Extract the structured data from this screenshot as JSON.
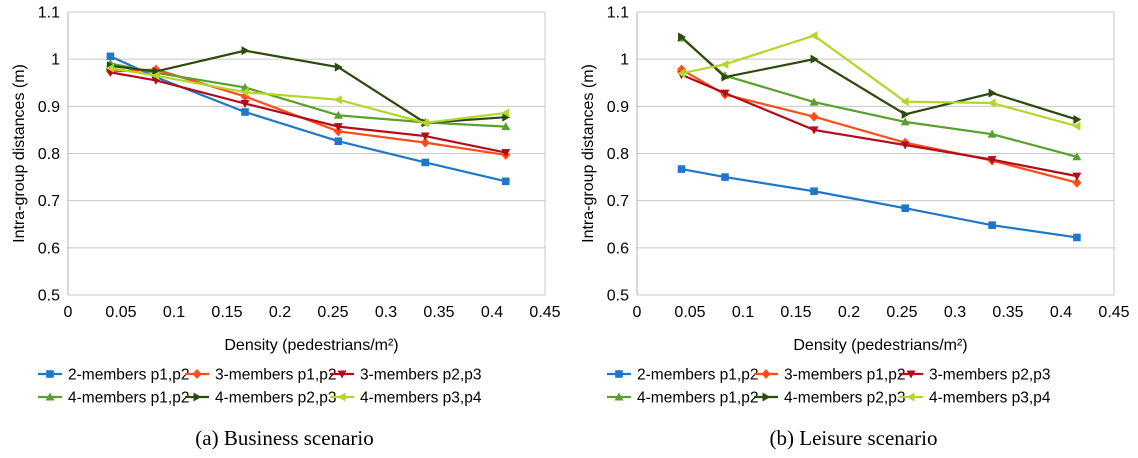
{
  "chart_data": [
    {
      "type": "line",
      "caption": "(a) Business scenario",
      "xlabel": "Density (pedestrians/m²)",
      "ylabel": "Intra-group distances (m)",
      "xlim": [
        0,
        0.45
      ],
      "ylim": [
        0.5,
        1.1
      ],
      "xticks": [
        "0",
        "0.05",
        "0.1",
        "0.15",
        "0.2",
        "0.25",
        "0.3",
        "0.35",
        "0.4",
        "0.45"
      ],
      "yticks": [
        "0.5",
        "0.6",
        "0.7",
        "0.8",
        "0.9",
        "1",
        "1.1"
      ],
      "grid": "horizontal",
      "legend": "bottom",
      "series": [
        {
          "name": "2-members p1,p2",
          "color": "#1f77c8",
          "marker": "square",
          "x": [
            0.04,
            0.083,
            0.167,
            0.255,
            0.337,
            0.413
          ],
          "y": [
            1.006,
            0.962,
            0.888,
            0.826,
            0.781,
            0.741
          ]
        },
        {
          "name": "3-members p1,p2",
          "color": "#ff4e1a",
          "marker": "diamond",
          "x": [
            0.04,
            0.083,
            0.167,
            0.255,
            0.337,
            0.413
          ],
          "y": [
            0.974,
            0.978,
            0.921,
            0.847,
            0.823,
            0.797
          ]
        },
        {
          "name": "3-members p2,p3",
          "color": "#b30d1b",
          "marker": "triangle-down",
          "x": [
            0.04,
            0.083,
            0.167,
            0.255,
            0.337,
            0.413
          ],
          "y": [
            0.972,
            0.955,
            0.906,
            0.857,
            0.837,
            0.802
          ]
        },
        {
          "name": "4-members p1,p2",
          "color": "#5aa02c",
          "marker": "triangle-up",
          "x": [
            0.04,
            0.083,
            0.167,
            0.255,
            0.337,
            0.413
          ],
          "y": [
            0.991,
            0.971,
            0.94,
            0.881,
            0.866,
            0.857
          ]
        },
        {
          "name": "4-members p2,p3",
          "color": "#2d4a0e",
          "marker": "triangle-right",
          "x": [
            0.04,
            0.083,
            0.167,
            0.255,
            0.337,
            0.413
          ],
          "y": [
            0.986,
            0.974,
            1.018,
            0.983,
            0.865,
            0.877
          ]
        },
        {
          "name": "4-members p3,p4",
          "color": "#b3d629",
          "marker": "triangle-left",
          "x": [
            0.04,
            0.083,
            0.167,
            0.255,
            0.337,
            0.413
          ],
          "y": [
            0.981,
            0.965,
            0.93,
            0.914,
            0.865,
            0.886
          ]
        }
      ]
    },
    {
      "type": "line",
      "caption": "(b) Leisure scenario",
      "xlabel": "Density (pedestrians/m²)",
      "ylabel": "Intra-group distances (m)",
      "xlim": [
        0,
        0.45
      ],
      "ylim": [
        0.5,
        1.1
      ],
      "xticks": [
        "0",
        "0.05",
        "0.1",
        "0.15",
        "0.2",
        "0.25",
        "0.3",
        "0.35",
        "0.4",
        "0.45"
      ],
      "yticks": [
        "0.5",
        "0.6",
        "0.7",
        "0.8",
        "0.9",
        "1",
        "1.1"
      ],
      "grid": "horizontal",
      "legend": "bottom",
      "series": [
        {
          "name": "2-members p1,p2",
          "color": "#1f77c8",
          "marker": "square",
          "x": [
            0.042,
            0.083,
            0.167,
            0.253,
            0.335,
            0.415
          ],
          "y": [
            0.767,
            0.75,
            0.72,
            0.684,
            0.648,
            0.622
          ]
        },
        {
          "name": "3-members p1,p2",
          "color": "#ff4e1a",
          "marker": "diamond",
          "x": [
            0.042,
            0.083,
            0.167,
            0.253,
            0.335,
            0.415
          ],
          "y": [
            0.978,
            0.925,
            0.878,
            0.823,
            0.785,
            0.738
          ]
        },
        {
          "name": "3-members p2,p3",
          "color": "#b30d1b",
          "marker": "triangle-down",
          "x": [
            0.042,
            0.083,
            0.167,
            0.253,
            0.335,
            0.415
          ],
          "y": [
            0.967,
            0.928,
            0.85,
            0.818,
            0.787,
            0.752
          ]
        },
        {
          "name": "4-members p1,p2",
          "color": "#5aa02c",
          "marker": "triangle-up",
          "x": [
            0.042,
            0.083,
            0.167,
            0.253,
            0.335,
            0.415
          ],
          "y": [
            1.045,
            0.965,
            0.909,
            0.867,
            0.841,
            0.793
          ]
        },
        {
          "name": "4-members p2,p3",
          "color": "#2d4a0e",
          "marker": "triangle-right",
          "x": [
            0.042,
            0.083,
            0.167,
            0.253,
            0.335,
            0.415
          ],
          "y": [
            1.047,
            0.962,
            1.0,
            0.883,
            0.928,
            0.872
          ]
        },
        {
          "name": "4-members p3,p4",
          "color": "#b3d629",
          "marker": "triangle-left",
          "x": [
            0.042,
            0.083,
            0.167,
            0.253,
            0.335,
            0.415
          ],
          "y": [
            0.97,
            0.989,
            1.05,
            0.91,
            0.907,
            0.858
          ]
        }
      ]
    }
  ]
}
